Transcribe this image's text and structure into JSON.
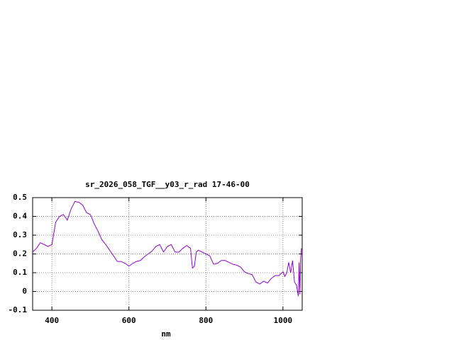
{
  "chart_data": {
    "type": "line",
    "title": "sr_2026_058_TGF__y03_r_rad 17-46-00",
    "x_label": "nm",
    "x": [
      350,
      360,
      370,
      380,
      390,
      400,
      405,
      410,
      420,
      430,
      440,
      450,
      460,
      470,
      480,
      490,
      500,
      510,
      520,
      530,
      540,
      550,
      560,
      570,
      580,
      590,
      600,
      610,
      620,
      630,
      640,
      650,
      660,
      670,
      680,
      690,
      700,
      710,
      720,
      730,
      740,
      750,
      760,
      765,
      770,
      775,
      780,
      790,
      800,
      810,
      820,
      830,
      840,
      850,
      860,
      870,
      880,
      890,
      900,
      910,
      920,
      930,
      940,
      950,
      960,
      970,
      980,
      990,
      1000,
      1005,
      1010,
      1015,
      1020,
      1025,
      1030,
      1035,
      1040,
      1042,
      1044,
      1046,
      1048
    ],
    "series": [
      {
        "color": "#9400d3",
        "values": [
          0.21,
          0.23,
          0.26,
          0.25,
          0.24,
          0.25,
          0.31,
          0.37,
          0.4,
          0.41,
          0.38,
          0.44,
          0.48,
          0.475,
          0.46,
          0.42,
          0.41,
          0.36,
          0.32,
          0.275,
          0.25,
          0.22,
          0.19,
          0.16,
          0.16,
          0.15,
          0.135,
          0.15,
          0.16,
          0.165,
          0.185,
          0.2,
          0.215,
          0.24,
          0.25,
          0.21,
          0.24,
          0.25,
          0.21,
          0.21,
          0.23,
          0.245,
          0.23,
          0.125,
          0.135,
          0.21,
          0.22,
          0.21,
          0.2,
          0.19,
          0.145,
          0.15,
          0.165,
          0.165,
          0.155,
          0.145,
          0.14,
          0.13,
          0.105,
          0.095,
          0.09,
          0.05,
          0.04,
          0.055,
          0.045,
          0.07,
          0.085,
          0.085,
          0.105,
          0.08,
          0.1,
          0.155,
          0.1,
          0.165,
          0.05,
          0.035,
          -0.025,
          0.155,
          -0.015,
          0.175,
          0.23
        ]
      }
    ],
    "xlim": [
      350,
      1050
    ],
    "xticks": [
      400,
      600,
      800,
      1000
    ],
    "ylim": [
      -0.1,
      0.5
    ],
    "yticks": [
      0.5,
      0.4,
      0.3,
      0.2,
      0.1,
      0,
      -0.1
    ],
    "grid": true
  }
}
